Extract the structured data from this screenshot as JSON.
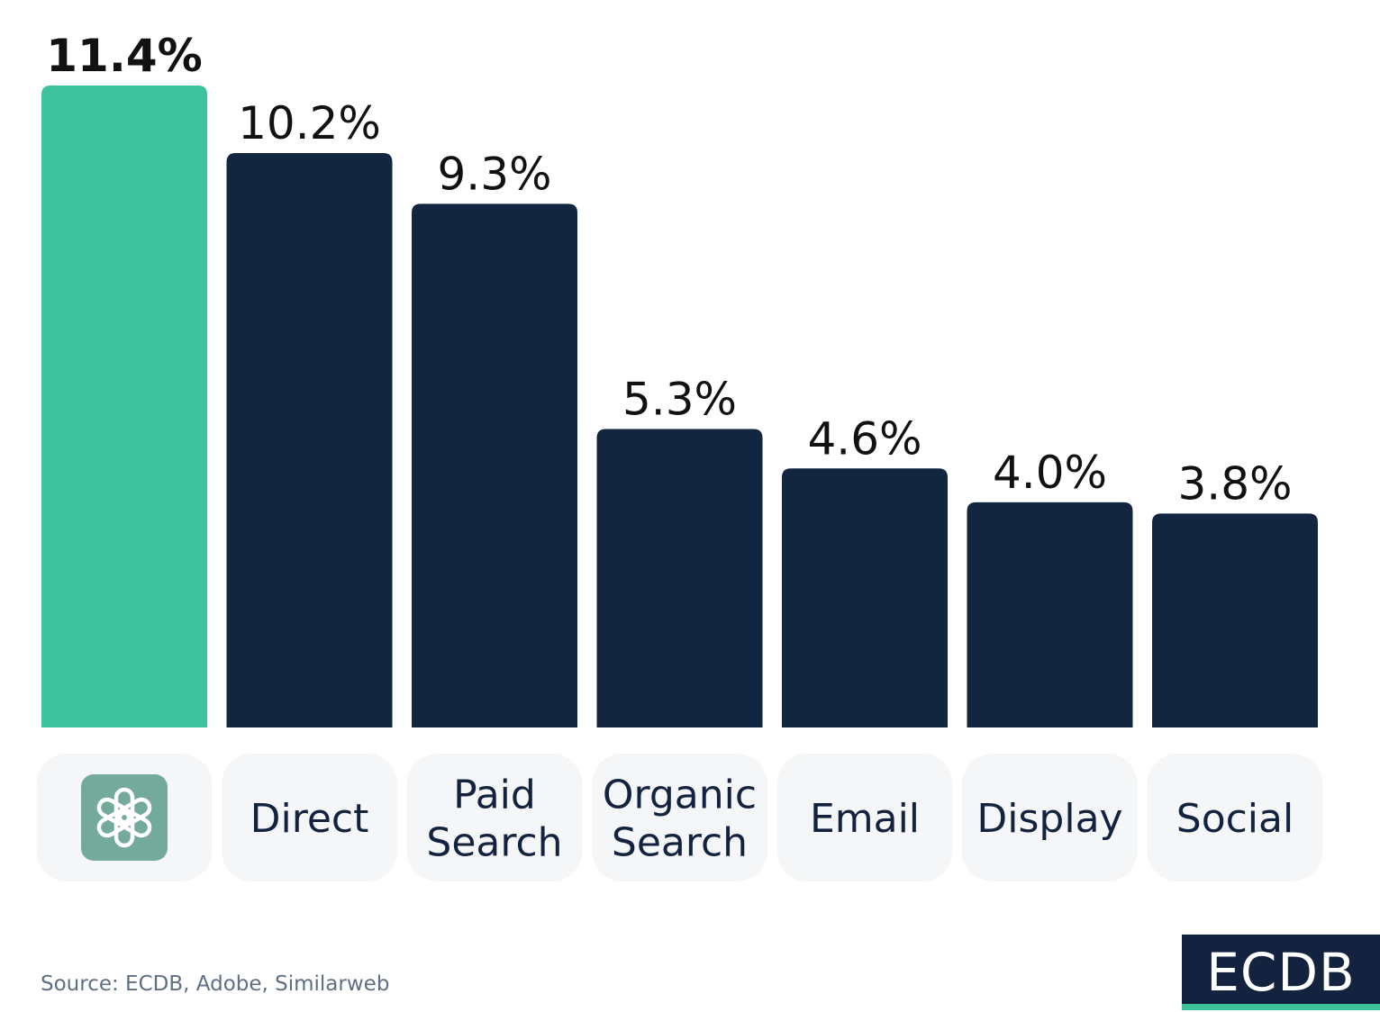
{
  "chart_data": {
    "type": "bar",
    "title": "",
    "xlabel": "",
    "ylabel": "",
    "ylim": [
      0,
      11.4
    ],
    "grid": false,
    "legend": "none",
    "value_suffix": "%",
    "categories": [
      {
        "name": "ChatGPT",
        "lines": [],
        "icon": "chatgpt-logo-icon"
      },
      {
        "name": "Direct",
        "lines": [
          "Direct"
        ]
      },
      {
        "name": "Paid Search",
        "lines": [
          "Paid",
          "Search"
        ]
      },
      {
        "name": "Organic Search",
        "lines": [
          "Organic",
          "Search"
        ]
      },
      {
        "name": "Email",
        "lines": [
          "Email"
        ]
      },
      {
        "name": "Display",
        "lines": [
          "Display"
        ]
      },
      {
        "name": "Social",
        "lines": [
          "Social"
        ]
      }
    ],
    "values": [
      11.4,
      10.2,
      9.3,
      5.3,
      4.6,
      4.0,
      3.8
    ],
    "value_labels": [
      "11.4%",
      "10.2%",
      "9.3%",
      "5.3%",
      "4.6%",
      "4.0%",
      "3.8%"
    ],
    "highlight_index": 0
  },
  "colors": {
    "highlight": "#3ec29e",
    "bar": "#13263f",
    "category_box": "#f4f6f8",
    "icon_bg": "#74aa9c"
  },
  "footer": {
    "source": "Source: ECDB, Adobe, Similarweb",
    "logo_text": "ECDB"
  }
}
